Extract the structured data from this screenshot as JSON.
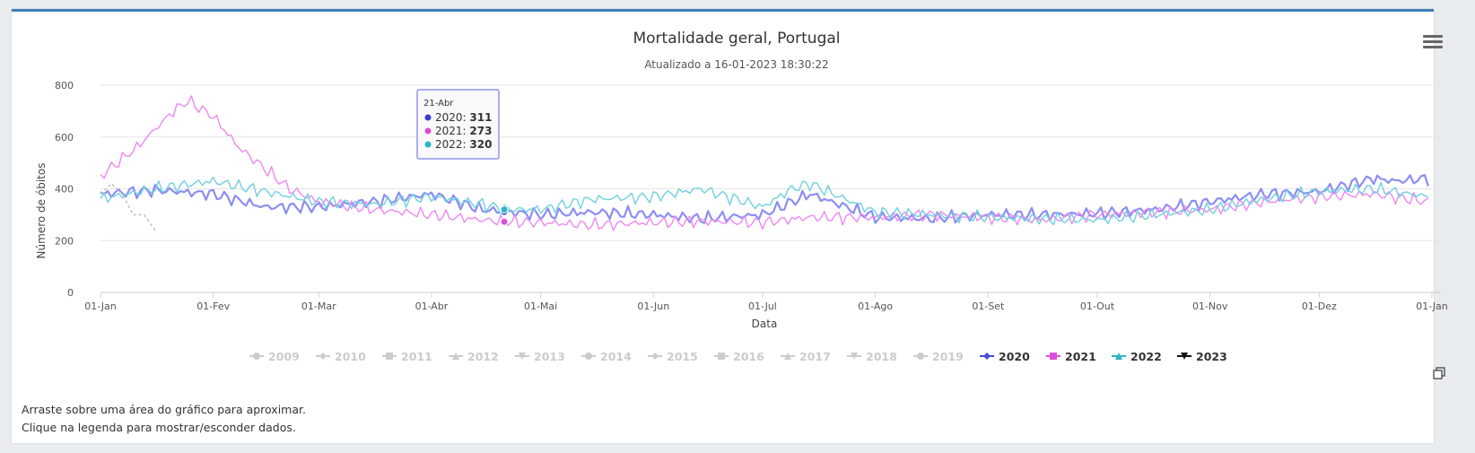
{
  "chart_data": {
    "type": "line",
    "title": "Mortalidade geral, Portugal",
    "subtitle": "Atualizado a 16-01-2023 18:30:22",
    "xlabel": "Data",
    "ylabel": "Número de óbitos",
    "ylim": [
      0,
      800
    ],
    "yticks": [
      0,
      200,
      400,
      600,
      800
    ],
    "xtick_labels": [
      "01-Jan",
      "01-Fev",
      "01-Mar",
      "01-Abr",
      "01-Mai",
      "01-Jun",
      "01-Jul",
      "01-Ago",
      "01-Set",
      "01-Out",
      "01-Nov",
      "01-Dez",
      "01-Jan"
    ],
    "xtick_days": [
      0,
      31,
      60,
      91,
      121,
      152,
      182,
      213,
      244,
      274,
      305,
      335,
      366
    ],
    "series": [
      {
        "name": "2020",
        "color": "#8c8ef2",
        "visible": true,
        "days": [
          0,
          15,
          31,
          45,
          60,
          75,
          91,
          105,
          112,
          121,
          135,
          152,
          165,
          182,
          195,
          213,
          228,
          244,
          259,
          274,
          290,
          305,
          320,
          335,
          350,
          356,
          365
        ],
        "values": [
          380,
          395,
          380,
          330,
          330,
          350,
          380,
          320,
          311,
          300,
          310,
          300,
          285,
          300,
          380,
          290,
          285,
          300,
          300,
          305,
          320,
          350,
          380,
          390,
          440,
          430,
          440
        ]
      },
      {
        "name": "2021",
        "color": "#ee88f2",
        "visible": true,
        "days": [
          0,
          10,
          20,
          24,
          31,
          38,
          45,
          52,
          60,
          75,
          91,
          105,
          112,
          121,
          135,
          152,
          165,
          182,
          195,
          213,
          228,
          244,
          259,
          274,
          290,
          305,
          320,
          335,
          350,
          365
        ],
        "values": [
          450,
          560,
          700,
          740,
          680,
          560,
          480,
          400,
          350,
          320,
          300,
          280,
          273,
          270,
          260,
          270,
          275,
          270,
          290,
          290,
          300,
          290,
          280,
          300,
          310,
          320,
          350,
          370,
          380,
          350
        ]
      },
      {
        "name": "2022",
        "color": "#6fd0e0",
        "visible": true,
        "days": [
          0,
          15,
          31,
          45,
          60,
          75,
          91,
          105,
          112,
          121,
          135,
          152,
          165,
          182,
          190,
          195,
          213,
          228,
          244,
          259,
          274,
          290,
          305,
          320,
          335,
          350,
          365
        ],
        "values": [
          360,
          400,
          430,
          390,
          350,
          340,
          370,
          340,
          320,
          320,
          360,
          370,
          400,
          330,
          400,
          420,
          310,
          300,
          290,
          285,
          280,
          300,
          320,
          360,
          390,
          400,
          370
        ]
      },
      {
        "name": "2023",
        "color": "#bbbbbb",
        "visible": true,
        "dashed": true,
        "days": [
          0,
          3,
          6,
          9,
          12,
          15
        ],
        "values": [
          380,
          420,
          380,
          300,
          300,
          240
        ]
      }
    ],
    "legend": [
      {
        "label": "2009",
        "marker": "circle",
        "color": "#cccccc",
        "active": false
      },
      {
        "label": "2010",
        "marker": "diamond",
        "color": "#cccccc",
        "active": false
      },
      {
        "label": "2011",
        "marker": "square",
        "color": "#cccccc",
        "active": false
      },
      {
        "label": "2012",
        "marker": "triangle",
        "color": "#cccccc",
        "active": false
      },
      {
        "label": "2013",
        "marker": "triangle-down",
        "color": "#cccccc",
        "active": false
      },
      {
        "label": "2014",
        "marker": "circle",
        "color": "#cccccc",
        "active": false
      },
      {
        "label": "2015",
        "marker": "diamond",
        "color": "#cccccc",
        "active": false
      },
      {
        "label": "2016",
        "marker": "square",
        "color": "#cccccc",
        "active": false
      },
      {
        "label": "2017",
        "marker": "triangle",
        "color": "#cccccc",
        "active": false
      },
      {
        "label": "2018",
        "marker": "triangle-down",
        "color": "#cccccc",
        "active": false
      },
      {
        "label": "2019",
        "marker": "circle",
        "color": "#cccccc",
        "active": false
      },
      {
        "label": "2020",
        "marker": "diamond",
        "color": "#4b4be0",
        "active": true
      },
      {
        "label": "2021",
        "marker": "square",
        "color": "#d94fd9",
        "active": true
      },
      {
        "label": "2022",
        "marker": "triangle",
        "color": "#2fb3c6",
        "active": true
      },
      {
        "label": "2023",
        "marker": "triangle-down",
        "color": "#111111",
        "active": true
      }
    ]
  },
  "tooltip": {
    "date": "21-Abr",
    "day": 111,
    "rows": [
      {
        "label": "2020: ",
        "value": "311",
        "color": "#3b3bd9",
        "num": 311
      },
      {
        "label": "2021: ",
        "value": "273",
        "color": "#d94fd9",
        "num": 273
      },
      {
        "label": "2022: ",
        "value": "320",
        "color": "#2fb3c6",
        "num": 320
      }
    ]
  },
  "help": {
    "line1": "Arraste sobre uma área do gráfico para aproximar.",
    "line2": "Clique na legenda para mostrar/esconder dados."
  }
}
